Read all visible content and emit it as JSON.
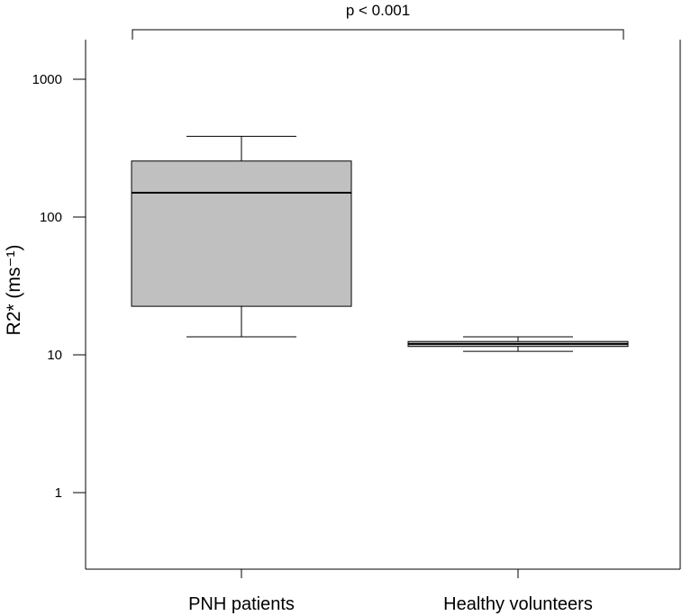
{
  "chart_data": {
    "type": "boxplot",
    "y_scale": "log",
    "ylim": [
      0.3,
      3000
    ],
    "ylabel": "R2* (ms⁻¹)",
    "y_ticks": [
      1,
      10,
      100,
      1000
    ],
    "y_tick_labels": [
      "1",
      "10",
      "100",
      "1000"
    ],
    "categories": [
      "PNH patients",
      "Healthy volunteers"
    ],
    "boxes": [
      {
        "category": "PNH patients",
        "whisker_low": 13.5,
        "q1": 22.5,
        "median": 150,
        "q3": 255,
        "whisker_high": 385,
        "fill": "#c0c0c0"
      },
      {
        "category": "Healthy volunteers",
        "whisker_low": 10.6,
        "q1": 11.5,
        "median": 12,
        "q3": 12.5,
        "whisker_high": 13.5,
        "fill": "#c0c0c0"
      }
    ],
    "annotation": {
      "text": "p < 0.001",
      "between": [
        "PNH patients",
        "Healthy volunteers"
      ]
    },
    "grid": false,
    "legend": "none"
  }
}
